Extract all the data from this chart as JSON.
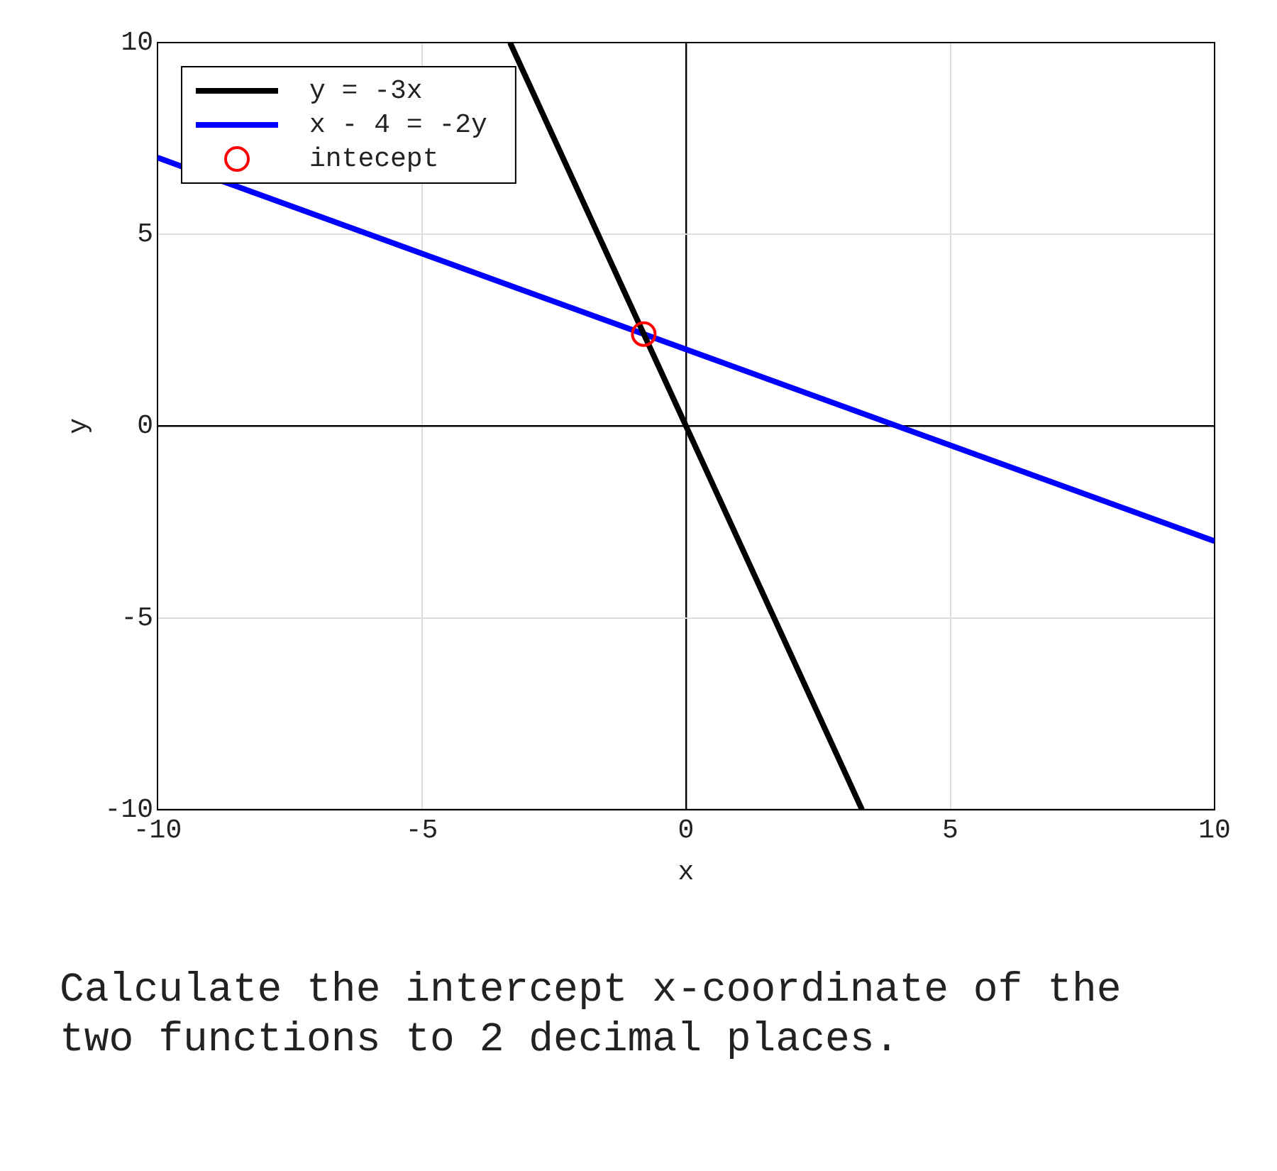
{
  "chart_data": {
    "type": "line",
    "xlabel": "x",
    "ylabel": "y",
    "xlim": [
      -10,
      10
    ],
    "ylim": [
      -10,
      10
    ],
    "xticks": [
      -10,
      -5,
      0,
      5,
      10
    ],
    "yticks": [
      -10,
      -5,
      0,
      5,
      10
    ],
    "grid": true,
    "legend": "top left",
    "line_style": "solid",
    "series": [
      {
        "name": "y = -3x",
        "color": "#000000",
        "x": [
          -3.33,
          3.33
        ],
        "values": [
          10,
          -10
        ],
        "marker": "none"
      },
      {
        "name": "x - 4 = -2y",
        "color": "#0000ff",
        "x": [
          -10,
          10
        ],
        "values": [
          7,
          -3
        ],
        "marker": "none"
      },
      {
        "name": "intecept",
        "type": "scatter",
        "color": "#ff0000",
        "x": [
          -0.8
        ],
        "values": [
          2.4
        ],
        "marker": "circle"
      }
    ],
    "annotations": [
      "Calculate the intercept x-coordinate of the two functions to 2 decimal places."
    ]
  }
}
